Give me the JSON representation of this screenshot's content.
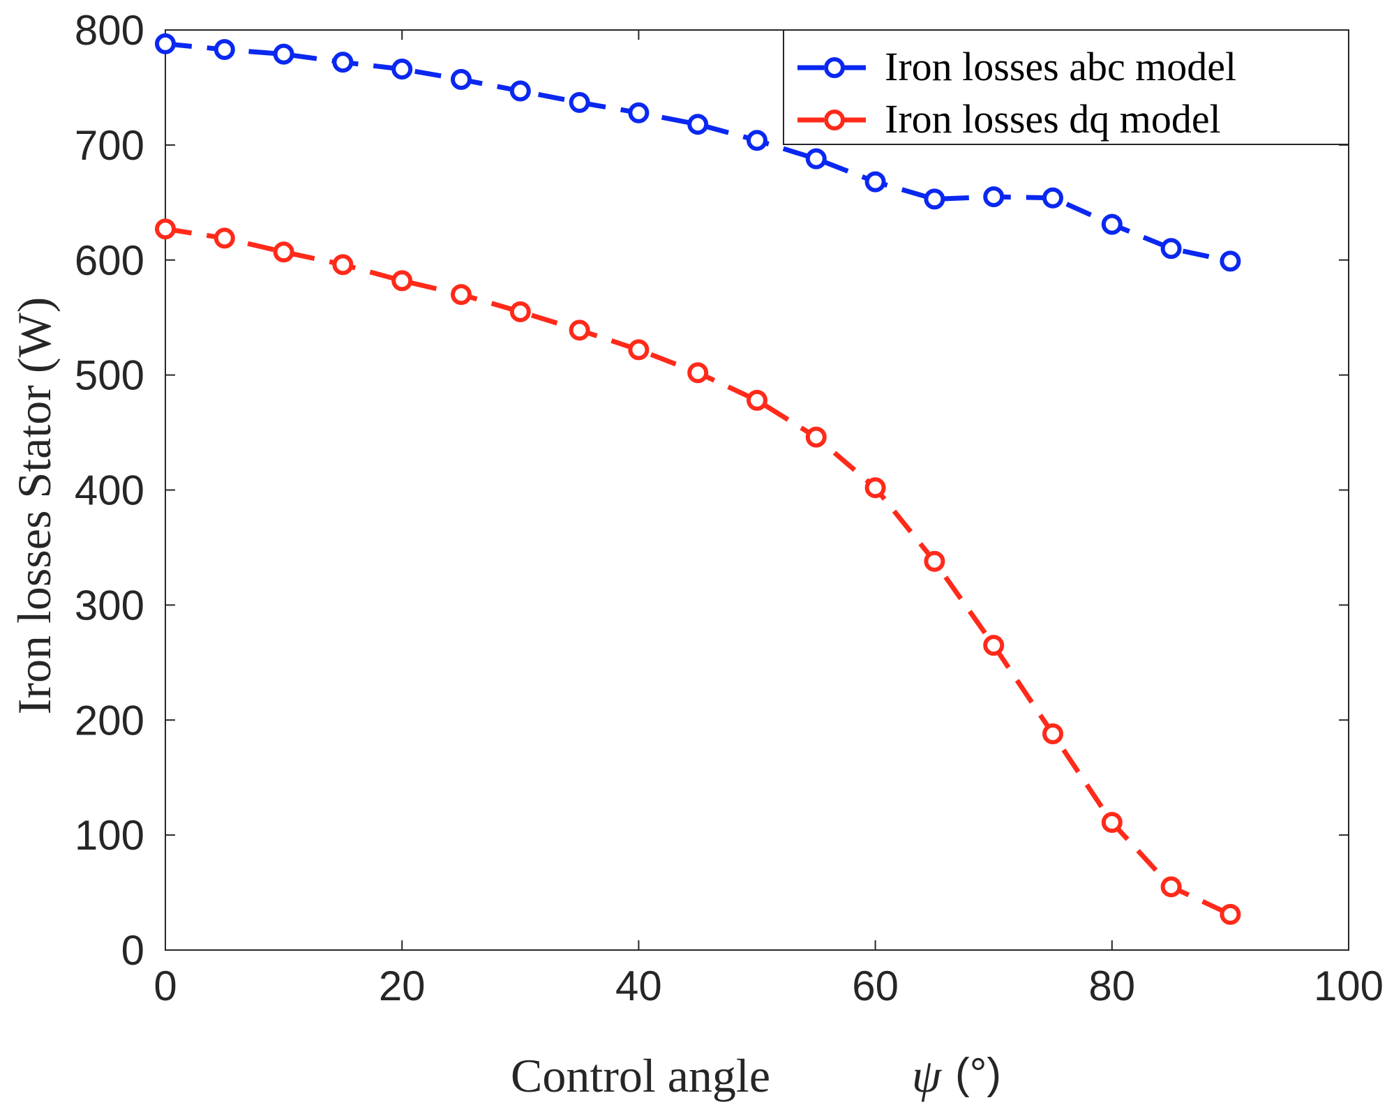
{
  "chart_data": {
    "type": "line",
    "title": "",
    "xlabel": "Control angle",
    "xlabel_symbol": "ψ",
    "xlabel_unit": "(°)",
    "ylabel": "Iron losses Stator (W)",
    "xlim": [
      0,
      100
    ],
    "ylim": [
      0,
      800
    ],
    "xticks": [
      "0",
      "20",
      "40",
      "60",
      "80",
      "100"
    ],
    "yticks": [
      "0",
      "100",
      "200",
      "300",
      "400",
      "500",
      "600",
      "700",
      "800"
    ],
    "grid": false,
    "legend_position": "top-right",
    "x": [
      0,
      5,
      10,
      15,
      20,
      25,
      30,
      35,
      40,
      45,
      50,
      55,
      60,
      65,
      70,
      75,
      80,
      85,
      90
    ],
    "series": [
      {
        "name": "Iron losses abc model",
        "color": "#0a28f0",
        "line_style": "dashed",
        "marker": "circle",
        "values": [
          788,
          783,
          779,
          772,
          766,
          757,
          747,
          737,
          728,
          718,
          704,
          688,
          668,
          653,
          655,
          654,
          631,
          610,
          599
        ]
      },
      {
        "name": "Iron losses dq model",
        "color": "#ff2a1a",
        "line_style": "dashed",
        "marker": "circle",
        "values": [
          627,
          619,
          607,
          596,
          582,
          570,
          555,
          539,
          522,
          502,
          478,
          446,
          402,
          338,
          265,
          188,
          111,
          55,
          31
        ]
      }
    ]
  }
}
